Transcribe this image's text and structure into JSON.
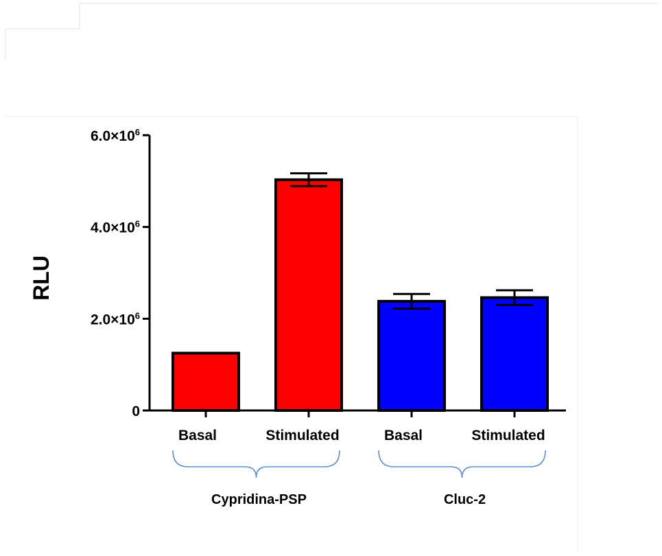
{
  "chart_data": {
    "type": "bar",
    "ylabel": "RLU",
    "ylim": [
      0,
      6000000
    ],
    "yticks": [
      {
        "value": 0,
        "label": "0",
        "sup": ""
      },
      {
        "value": 2000000,
        "label": "2.0×10",
        "sup": "6"
      },
      {
        "value": 4000000,
        "label": "4.0×10",
        "sup": "6"
      },
      {
        "value": 6000000,
        "label": "6.0×10",
        "sup": "6"
      }
    ],
    "categories": [
      "Basal",
      "Stimulated",
      "Basal",
      "Stimulated"
    ],
    "values": [
      1250000,
      5030000,
      2380000,
      2460000
    ],
    "errors": [
      0,
      140000,
      160000,
      160000
    ],
    "colors": [
      "#ff0000",
      "#ff0000",
      "#0000ff",
      "#0000ff"
    ],
    "groups": [
      {
        "label": "Cypridina-PSP",
        "members": [
          0,
          1
        ]
      },
      {
        "label": "Cluc-2",
        "members": [
          2,
          3
        ]
      }
    ],
    "grid": false
  },
  "style": {
    "bracket_color": "#5b8fd4",
    "axis_color": "#000000"
  }
}
